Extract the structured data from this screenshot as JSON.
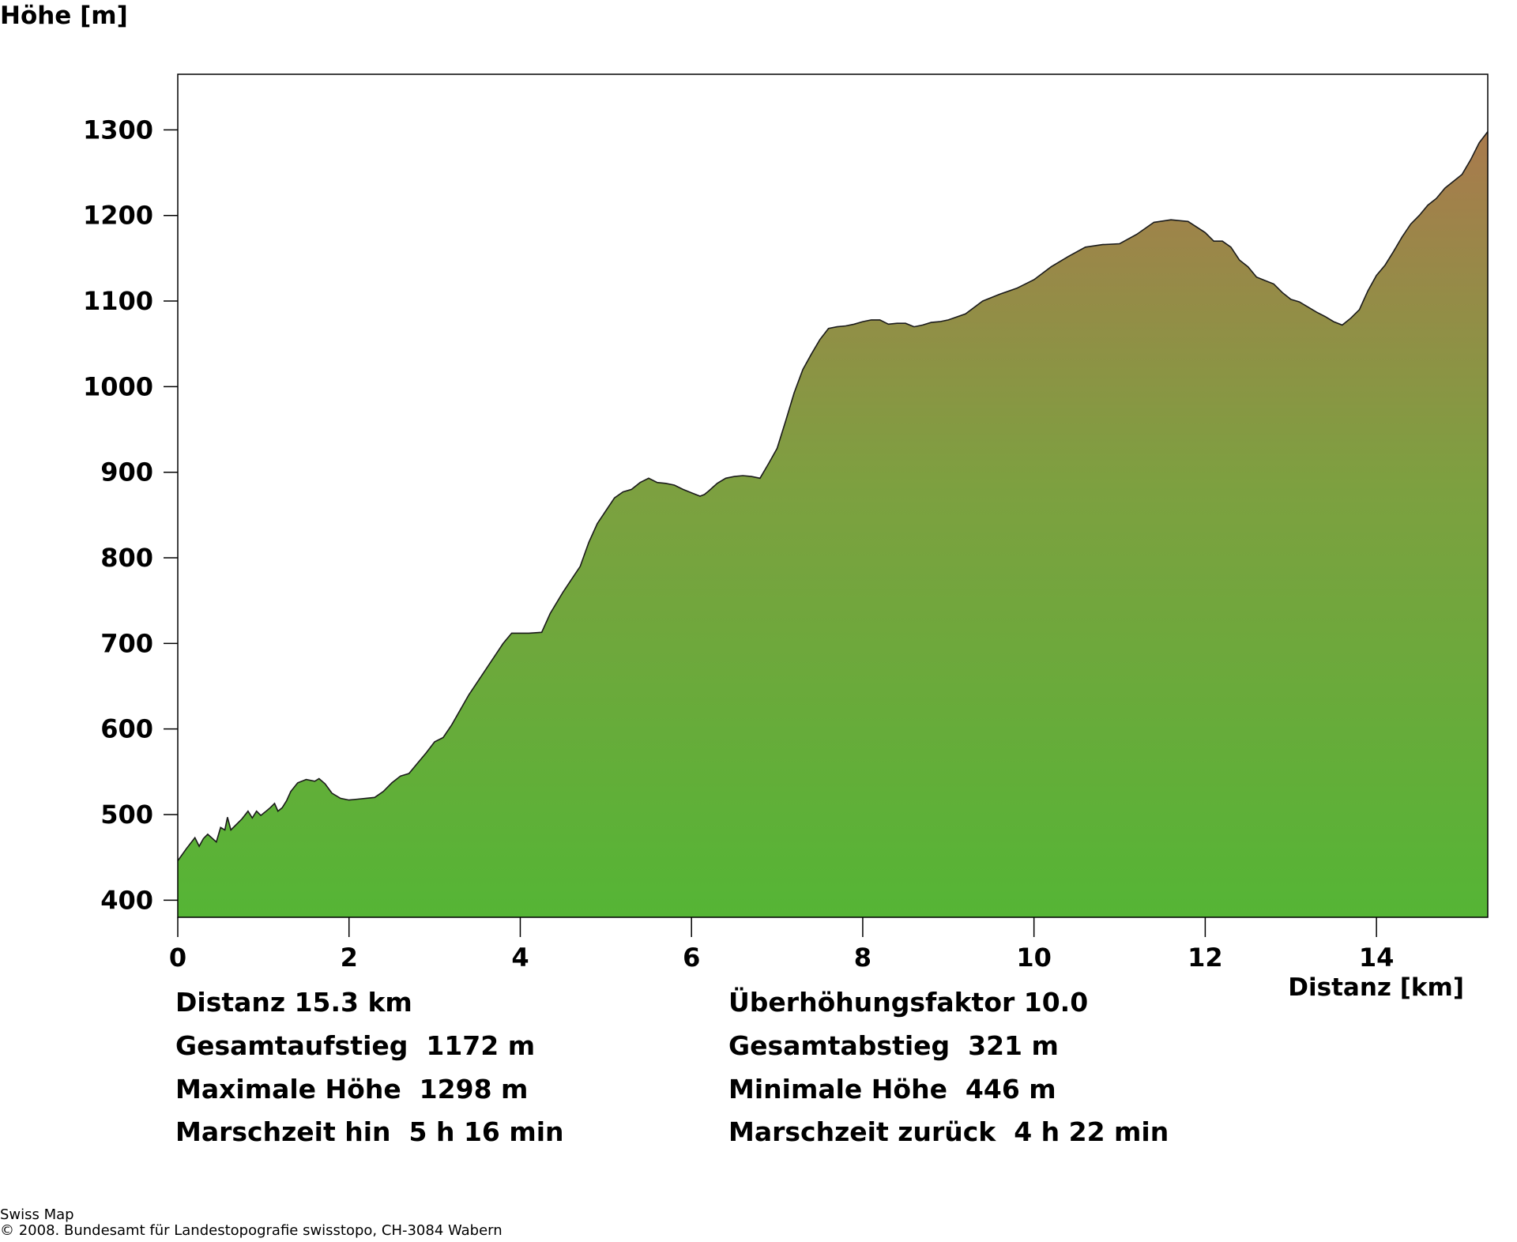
{
  "chart_data": {
    "type": "area",
    "ylabel": "Höhe [m]",
    "xlabel": "Distanz [km]",
    "xlim": [
      0,
      15.3
    ],
    "ylim": [
      380,
      1365
    ],
    "x_ticks": [
      0,
      2,
      4,
      6,
      8,
      10,
      12,
      14
    ],
    "y_ticks": [
      400,
      500,
      600,
      700,
      800,
      900,
      1000,
      1100,
      1200,
      1300
    ],
    "fill_colors": {
      "top": "#a97a4d",
      "middle": "#7da040",
      "bottom": "#55b535"
    },
    "series": [
      {
        "x": [
          0,
          0.1,
          0.2,
          0.25,
          0.3,
          0.35,
          0.45,
          0.5,
          0.55,
          0.58,
          0.62,
          0.68,
          0.75,
          0.82,
          0.87,
          0.92,
          0.97,
          1.02,
          1.08,
          1.13,
          1.17,
          1.22,
          1.27,
          1.32,
          1.4,
          1.5,
          1.6,
          1.65,
          1.72,
          1.8,
          1.9,
          2.0,
          2.1,
          2.3,
          2.4,
          2.5,
          2.6,
          2.7,
          2.8,
          2.9,
          3.0,
          3.1,
          3.2,
          3.4,
          3.6,
          3.8,
          3.9,
          4.0,
          4.1,
          4.25,
          4.35,
          4.5,
          4.6,
          4.7,
          4.8,
          4.9,
          5.0,
          5.1,
          5.2,
          5.3,
          5.4,
          5.5,
          5.6,
          5.7,
          5.8,
          5.9,
          6.0,
          6.1,
          6.15,
          6.2,
          6.3,
          6.4,
          6.5,
          6.6,
          6.7,
          6.8,
          6.9,
          7.0,
          7.1,
          7.2,
          7.3,
          7.4,
          7.5,
          7.6,
          7.7,
          7.8,
          7.9,
          8.0,
          8.1,
          8.2,
          8.3,
          8.4,
          8.5,
          8.6,
          8.7,
          8.8,
          8.9,
          9.0,
          9.2,
          9.4,
          9.6,
          9.8,
          10.0,
          10.2,
          10.4,
          10.6,
          10.8,
          11.0,
          11.2,
          11.4,
          11.6,
          11.8,
          12.0,
          12.1,
          12.2,
          12.3,
          12.4,
          12.5,
          12.6,
          12.7,
          12.8,
          12.9,
          13.0,
          13.1,
          13.2,
          13.3,
          13.4,
          13.5,
          13.6,
          13.7,
          13.8,
          13.9,
          14.0,
          14.1,
          14.2,
          14.3,
          14.4,
          14.5,
          14.6,
          14.7,
          14.8,
          14.9,
          15.0,
          15.1,
          15.2,
          15.3
        ],
        "y": [
          446,
          460,
          473,
          463,
          472,
          477,
          468,
          485,
          482,
          497,
          482,
          488,
          495,
          504,
          496,
          504,
          499,
          503,
          508,
          513,
          504,
          508,
          516,
          527,
          537,
          541,
          539,
          542,
          536,
          525,
          519,
          517,
          518,
          520,
          527,
          537,
          545,
          548,
          560,
          572,
          585,
          590,
          605,
          640,
          670,
          700,
          712,
          712,
          712,
          713,
          735,
          760,
          775,
          790,
          818,
          840,
          855,
          870,
          877,
          880,
          888,
          893,
          888,
          887,
          885,
          880,
          876,
          872,
          874,
          878,
          887,
          893,
          895,
          896,
          895,
          893,
          910,
          928,
          960,
          993,
          1020,
          1038,
          1055,
          1068,
          1070,
          1071,
          1073,
          1076,
          1078,
          1078,
          1073,
          1074,
          1074,
          1070,
          1072,
          1075,
          1076,
          1078,
          1085,
          1100,
          1108,
          1115,
          1125,
          1140,
          1152,
          1163,
          1166,
          1167,
          1178,
          1192,
          1195,
          1193,
          1180,
          1170,
          1170,
          1163,
          1148,
          1140,
          1128,
          1124,
          1120,
          1110,
          1102,
          1099,
          1093,
          1087,
          1082,
          1076,
          1072,
          1080,
          1090,
          1112,
          1130,
          1142,
          1158,
          1175,
          1190,
          1200,
          1212,
          1220,
          1232,
          1240,
          1248,
          1265,
          1285,
          1298
        ]
      }
    ]
  },
  "stats": {
    "left": [
      "Distanz 15.3 km",
      "Gesamtaufstieg  1172 m",
      "Maximale Höhe  1298 m",
      "Marschzeit hin  5 h 16 min"
    ],
    "right": [
      "Überhöhungsfaktor 10.0",
      "Gesamtabstieg  321 m",
      "Minimale Höhe  446 m",
      "Marschzeit zurück  4 h 22 min"
    ]
  },
  "footer": {
    "line1": "Swiss Map",
    "line2": "© 2008. Bundesamt für Landestopografie swisstopo, CH-3084 Wabern"
  }
}
